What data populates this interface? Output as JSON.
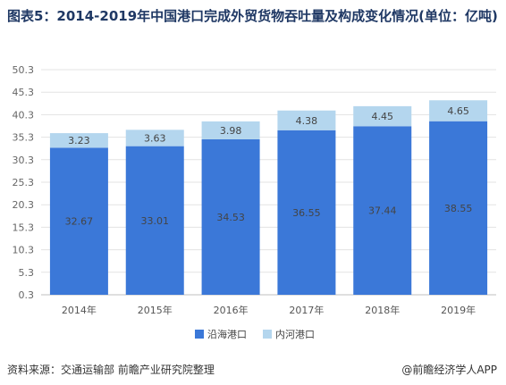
{
  "title": "图表5：2014-2019年中国港口完成外贸货物吞吐量及构成变化情况(单位：亿吨)",
  "source": "资料来源：交通运输部 前瞻产业研究院整理",
  "brand": "@前瞻经济学人APP",
  "colors": {
    "coastal": "#3b78d8",
    "inland": "#b4d6ee"
  },
  "chart_data": {
    "type": "bar",
    "stacked": true,
    "categories": [
      "2014年",
      "2015年",
      "2016年",
      "2017年",
      "2018年",
      "2019年"
    ],
    "series": [
      {
        "name": "沿海港口",
        "values": [
          32.67,
          33.01,
          34.53,
          36.55,
          37.44,
          38.55
        ]
      },
      {
        "name": "内河港口",
        "values": [
          3.23,
          3.63,
          3.98,
          4.38,
          4.45,
          4.65
        ]
      }
    ],
    "yticks": [
      "0.3",
      "5.3",
      "10.3",
      "15.3",
      "20.3",
      "25.3",
      "30.3",
      "35.3",
      "40.3",
      "45.3",
      "50.3"
    ],
    "ylim": [
      0.3,
      50.3
    ],
    "grid": true,
    "legend": "bottom"
  }
}
